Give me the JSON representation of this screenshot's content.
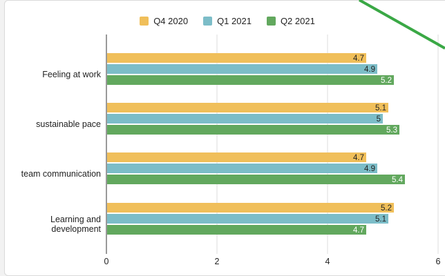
{
  "chart_data": {
    "type": "bar",
    "orientation": "horizontal",
    "categories": [
      [
        "Feeling at work"
      ],
      [
        "sustainable pace"
      ],
      [
        "team communication"
      ],
      [
        "Learning and",
        "development"
      ]
    ],
    "series": [
      {
        "name": "Q4 2020",
        "color": "#f0bf5a",
        "values": [
          4.7,
          5.1,
          4.7,
          5.2
        ]
      },
      {
        "name": "Q1 2021",
        "color": "#7cbdc8",
        "values": [
          4.9,
          5,
          4.9,
          5.1
        ]
      },
      {
        "name": "Q2 2021",
        "color": "#62a85e",
        "values": [
          5.2,
          5.3,
          5.4,
          4.7
        ]
      }
    ],
    "xlim": [
      0,
      6
    ],
    "xticks": [
      "0",
      "2",
      "4",
      "6"
    ],
    "grid": true,
    "legend": "top"
  },
  "colors": {
    "arrow": "#3aa845",
    "grid": "#dddddd",
    "axis": "#333333"
  }
}
